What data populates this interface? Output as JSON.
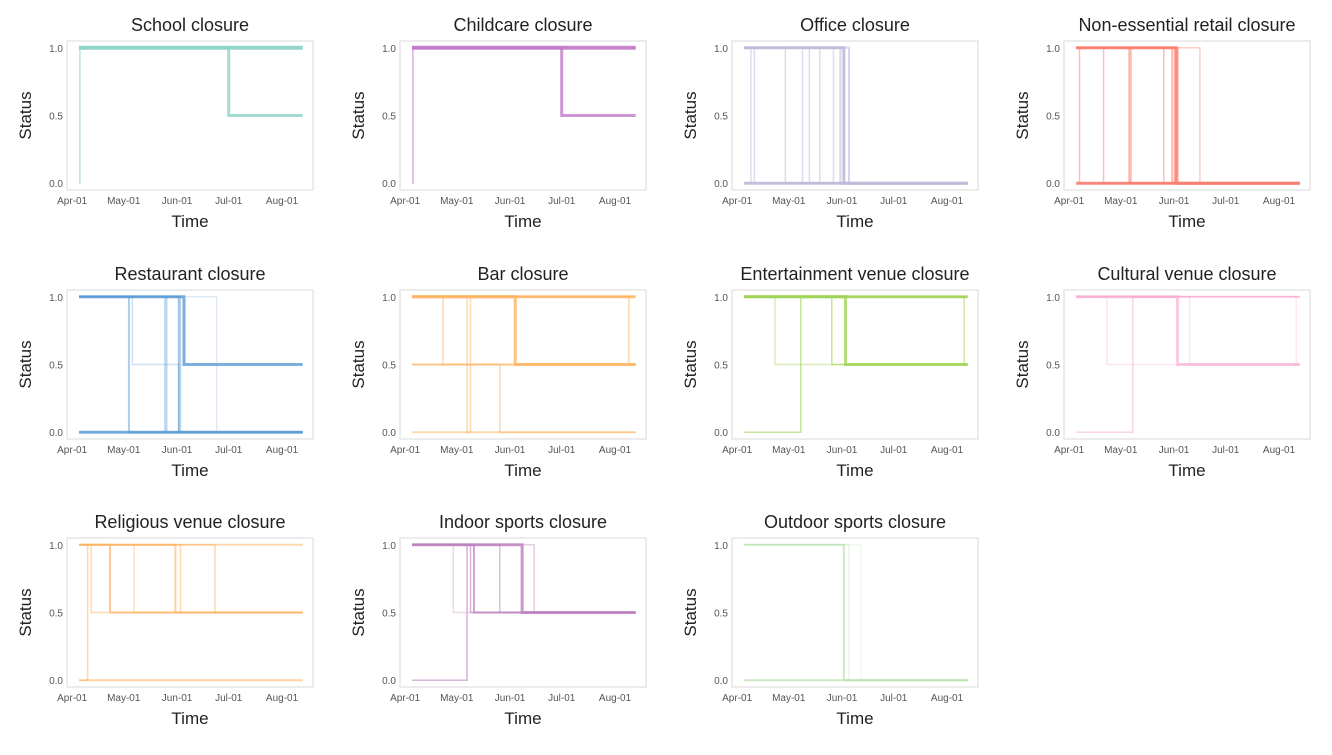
{
  "chart_data": {
    "type": "line",
    "layout": "small-multiples 3x4",
    "x_unit": "days since Apr-01",
    "xlim": [
      -3,
      140
    ],
    "ylim": [
      -0.05,
      1.05
    ],
    "x_ticks": [
      {
        "label": "Apr-01",
        "day": 0
      },
      {
        "label": "May-01",
        "day": 30
      },
      {
        "label": "Jun-01",
        "day": 61
      },
      {
        "label": "Jul-01",
        "day": 91
      },
      {
        "label": "Aug-01",
        "day": 122
      }
    ],
    "y_ticks": [
      {
        "label": "0.0",
        "value": 0
      },
      {
        "label": "0.5",
        "value": 0.5
      },
      {
        "label": "1.0",
        "value": 1
      }
    ],
    "xlabel": "Time",
    "ylabel": "Status",
    "end_day": 134,
    "panels": [
      {
        "title": "School closure",
        "color": "#8dd3c7",
        "series": [
          {
            "steps": [
              [
                4,
                0
              ],
              [
                4.5,
                1
              ]
            ],
            "alpha": 0.6,
            "w": 1.5
          },
          {
            "steps": [
              [
                4,
                1
              ]
            ],
            "alpha": 0.9,
            "w": 4
          },
          {
            "steps": [
              [
                4,
                1
              ],
              [
                91,
                0.5
              ]
            ],
            "alpha": 0.8,
            "w": 3
          }
        ]
      },
      {
        "title": "Childcare closure",
        "color": "#c27bc9",
        "series": [
          {
            "steps": [
              [
                4,
                0
              ],
              [
                4.5,
                1
              ]
            ],
            "alpha": 0.6,
            "w": 1.5
          },
          {
            "steps": [
              [
                4,
                1
              ]
            ],
            "alpha": 0.9,
            "w": 4
          },
          {
            "steps": [
              [
                4,
                1
              ],
              [
                91,
                0.5
              ]
            ],
            "alpha": 0.8,
            "w": 3
          }
        ]
      },
      {
        "title": "Office closure",
        "color": "#bebada",
        "series": [
          {
            "steps": [
              [
                4,
                0
              ]
            ],
            "alpha": 0.9,
            "w": 3
          },
          {
            "steps": [
              [
                4,
                1
              ],
              [
                62,
                0
              ]
            ],
            "alpha": 0.9,
            "w": 3
          },
          {
            "steps": [
              [
                4,
                0
              ],
              [
                8,
                1
              ],
              [
                10,
                0
              ]
            ],
            "alpha": 0.5,
            "w": 1.5
          },
          {
            "steps": [
              [
                4,
                1
              ],
              [
                28,
                0
              ]
            ],
            "alpha": 0.5,
            "w": 1.5
          },
          {
            "steps": [
              [
                4,
                1
              ],
              [
                38,
                0
              ],
              [
                42,
                1
              ],
              [
                48,
                0
              ]
            ],
            "alpha": 0.5,
            "w": 1.5
          },
          {
            "steps": [
              [
                4,
                1
              ],
              [
                56,
                0
              ]
            ],
            "alpha": 0.5,
            "w": 1.5
          },
          {
            "steps": [
              [
                4,
                1
              ],
              [
                60,
                0
              ]
            ],
            "alpha": 0.6,
            "w": 2
          },
          {
            "steps": [
              [
                4,
                1
              ],
              [
                65,
                0
              ]
            ],
            "alpha": 0.6,
            "w": 2
          }
        ]
      },
      {
        "title": "Non-essential retail closure",
        "color": "#fb8072",
        "series": [
          {
            "steps": [
              [
                4,
                0
              ]
            ],
            "alpha": 0.9,
            "w": 3
          },
          {
            "steps": [
              [
                4,
                1
              ],
              [
                62,
                0
              ]
            ],
            "alpha": 0.9,
            "w": 3
          },
          {
            "steps": [
              [
                4,
                1
              ],
              [
                6,
                0
              ]
            ],
            "alpha": 0.5,
            "w": 1.5
          },
          {
            "steps": [
              [
                4,
                1
              ],
              [
                20,
                0
              ]
            ],
            "alpha": 0.5,
            "w": 1.5
          },
          {
            "steps": [
              [
                4,
                1
              ],
              [
                35,
                0
              ]
            ],
            "alpha": 0.6,
            "w": 2
          },
          {
            "steps": [
              [
                4,
                1
              ],
              [
                36,
                0
              ]
            ],
            "alpha": 0.5,
            "w": 1.5
          },
          {
            "steps": [
              [
                4,
                1
              ],
              [
                55,
                0
              ]
            ],
            "alpha": 0.5,
            "w": 1.5
          },
          {
            "steps": [
              [
                4,
                1
              ],
              [
                60,
                0
              ]
            ],
            "alpha": 0.6,
            "w": 2
          },
          {
            "steps": [
              [
                4,
                1
              ],
              [
                63,
                0
              ]
            ],
            "alpha": 0.7,
            "w": 2
          },
          {
            "steps": [
              [
                4,
                1
              ],
              [
                76,
                0
              ]
            ],
            "alpha": 0.4,
            "w": 1.5
          }
        ]
      },
      {
        "title": "Restaurant closure",
        "color": "#5b9bd5",
        "series": [
          {
            "steps": [
              [
                4,
                0
              ]
            ],
            "alpha": 0.8,
            "w": 3
          },
          {
            "steps": [
              [
                4,
                1
              ],
              [
                65,
                0.5
              ]
            ],
            "alpha": 0.8,
            "w": 3
          },
          {
            "steps": [
              [
                4,
                1
              ],
              [
                35,
                0.5
              ],
              [
                62,
                0
              ]
            ],
            "alpha": 0.3,
            "w": 1.5
          },
          {
            "steps": [
              [
                4,
                1
              ],
              [
                54,
                0
              ]
            ],
            "alpha": 0.5,
            "w": 1.5
          },
          {
            "steps": [
              [
                4,
                1
              ],
              [
                62,
                0
              ]
            ],
            "alpha": 0.6,
            "w": 2
          },
          {
            "steps": [
              [
                4,
                0
              ],
              [
                55,
                1
              ],
              [
                63,
                0
              ]
            ],
            "alpha": 0.4,
            "w": 1.5
          },
          {
            "steps": [
              [
                4,
                1
              ],
              [
                84,
                0
              ]
            ],
            "alpha": 0.2,
            "w": 1.5
          },
          {
            "steps": [
              [
                4,
                1
              ],
              [
                33,
                0
              ]
            ],
            "alpha": 0.5,
            "w": 2
          }
        ]
      },
      {
        "title": "Bar closure",
        "color": "#fdb462",
        "series": [
          {
            "steps": [
              [
                4,
                1
              ]
            ],
            "alpha": 0.8,
            "w": 3
          },
          {
            "steps": [
              [
                4,
                0.5
              ]
            ],
            "alpha": 0.6,
            "w": 2
          },
          {
            "steps": [
              [
                4,
                0
              ]
            ],
            "alpha": 0.5,
            "w": 2
          },
          {
            "steps": [
              [
                4,
                1
              ],
              [
                22,
                0.5
              ]
            ],
            "alpha": 0.5,
            "w": 1.5
          },
          {
            "steps": [
              [
                4,
                1
              ],
              [
                36,
                0
              ],
              [
                38,
                1
              ]
            ],
            "alpha": 0.5,
            "w": 1.5
          },
          {
            "steps": [
              [
                4,
                0.5
              ],
              [
                55,
                0
              ]
            ],
            "alpha": 0.5,
            "w": 1.5
          },
          {
            "steps": [
              [
                4,
                1
              ],
              [
                64,
                0.5
              ]
            ],
            "alpha": 0.8,
            "w": 3
          },
          {
            "steps": [
              [
                4,
                1
              ],
              [
                130,
                0.5
              ]
            ],
            "alpha": 0.5,
            "w": 1.5
          }
        ]
      },
      {
        "title": "Entertainment venue closure",
        "color": "#9fd356",
        "series": [
          {
            "steps": [
              [
                4,
                1
              ]
            ],
            "alpha": 0.8,
            "w": 3
          },
          {
            "steps": [
              [
                4,
                0
              ],
              [
                37,
                1
              ]
            ],
            "alpha": 0.6,
            "w": 1.5
          },
          {
            "steps": [
              [
                4,
                1
              ],
              [
                22,
                0.5
              ]
            ],
            "alpha": 0.4,
            "w": 1.5
          },
          {
            "steps": [
              [
                4,
                1
              ],
              [
                55,
                0.5
              ]
            ],
            "alpha": 0.6,
            "w": 1.5
          },
          {
            "steps": [
              [
                4,
                1
              ],
              [
                63,
                0.5
              ]
            ],
            "alpha": 0.8,
            "w": 3
          },
          {
            "steps": [
              [
                4,
                1
              ],
              [
                132,
                0.5
              ]
            ],
            "alpha": 0.5,
            "w": 1.5
          }
        ]
      },
      {
        "title": "Cultural venue closure",
        "color": "#f7a8cf",
        "series": [
          {
            "steps": [
              [
                4,
                1
              ]
            ],
            "alpha": 0.6,
            "w": 2
          },
          {
            "steps": [
              [
                4,
                0
              ],
              [
                37,
                1
              ]
            ],
            "alpha": 0.5,
            "w": 1.5
          },
          {
            "steps": [
              [
                4,
                1
              ],
              [
                22,
                0.5
              ]
            ],
            "alpha": 0.3,
            "w": 1.5
          },
          {
            "steps": [
              [
                4,
                1
              ],
              [
                63,
                0.5
              ]
            ],
            "alpha": 0.6,
            "w": 3
          },
          {
            "steps": [
              [
                4,
                1
              ],
              [
                70,
                0.5
              ]
            ],
            "alpha": 0.3,
            "w": 1.5
          },
          {
            "steps": [
              [
                4,
                1
              ],
              [
                132,
                0.5
              ]
            ],
            "alpha": 0.3,
            "w": 1.5
          }
        ]
      },
      {
        "title": "Religious venue closure",
        "color": "#fdb462",
        "series": [
          {
            "steps": [
              [
                4,
                0
              ]
            ],
            "alpha": 0.6,
            "w": 2
          },
          {
            "steps": [
              [
                4,
                1
              ]
            ],
            "alpha": 0.5,
            "w": 2
          },
          {
            "steps": [
              [
                4,
                0
              ],
              [
                9,
                1
              ],
              [
                11,
                0.5
              ]
            ],
            "alpha": 0.5,
            "w": 1.5
          },
          {
            "steps": [
              [
                4,
                1
              ],
              [
                22,
                0.5
              ]
            ],
            "alpha": 0.7,
            "w": 2
          },
          {
            "steps": [
              [
                4,
                1
              ],
              [
                36,
                0.5
              ]
            ],
            "alpha": 0.4,
            "w": 1.5
          },
          {
            "steps": [
              [
                4,
                1
              ],
              [
                60,
                0.5
              ]
            ],
            "alpha": 0.6,
            "w": 2
          },
          {
            "steps": [
              [
                4,
                1
              ],
              [
                63,
                0.5
              ]
            ],
            "alpha": 0.5,
            "w": 1.5
          },
          {
            "steps": [
              [
                4,
                1
              ],
              [
                83,
                0.5
              ]
            ],
            "alpha": 0.5,
            "w": 1.5
          }
        ]
      },
      {
        "title": "Indoor sports closure",
        "color": "#bc80bd",
        "series": [
          {
            "steps": [
              [
                4,
                0
              ],
              [
                36,
                1
              ],
              [
                38,
                0.5
              ]
            ],
            "alpha": 0.6,
            "w": 1.5
          },
          {
            "steps": [
              [
                4,
                1
              ],
              [
                40,
                0.5
              ]
            ],
            "alpha": 0.7,
            "w": 2
          },
          {
            "steps": [
              [
                4,
                1
              ],
              [
                55,
                0.5
              ]
            ],
            "alpha": 0.5,
            "w": 1.5
          },
          {
            "steps": [
              [
                4,
                1
              ],
              [
                68,
                0.5
              ]
            ],
            "alpha": 0.8,
            "w": 3
          },
          {
            "steps": [
              [
                4,
                1
              ],
              [
                28,
                0.5
              ]
            ],
            "alpha": 0.3,
            "w": 1.5
          },
          {
            "steps": [
              [
                4,
                1
              ],
              [
                75,
                0.5
              ]
            ],
            "alpha": 0.4,
            "w": 1.5
          }
        ]
      },
      {
        "title": "Outdoor sports closure",
        "color": "#b6e0ad",
        "series": [
          {
            "steps": [
              [
                4,
                0
              ]
            ],
            "alpha": 0.7,
            "w": 2
          },
          {
            "steps": [
              [
                4,
                1
              ],
              [
                62,
                0
              ]
            ],
            "alpha": 0.7,
            "w": 2
          },
          {
            "steps": [
              [
                4,
                1
              ],
              [
                65,
                0
              ]
            ],
            "alpha": 0.3,
            "w": 1.5
          },
          {
            "steps": [
              [
                4,
                1
              ],
              [
                72,
                0
              ]
            ],
            "alpha": 0.2,
            "w": 1.5
          }
        ]
      }
    ]
  }
}
